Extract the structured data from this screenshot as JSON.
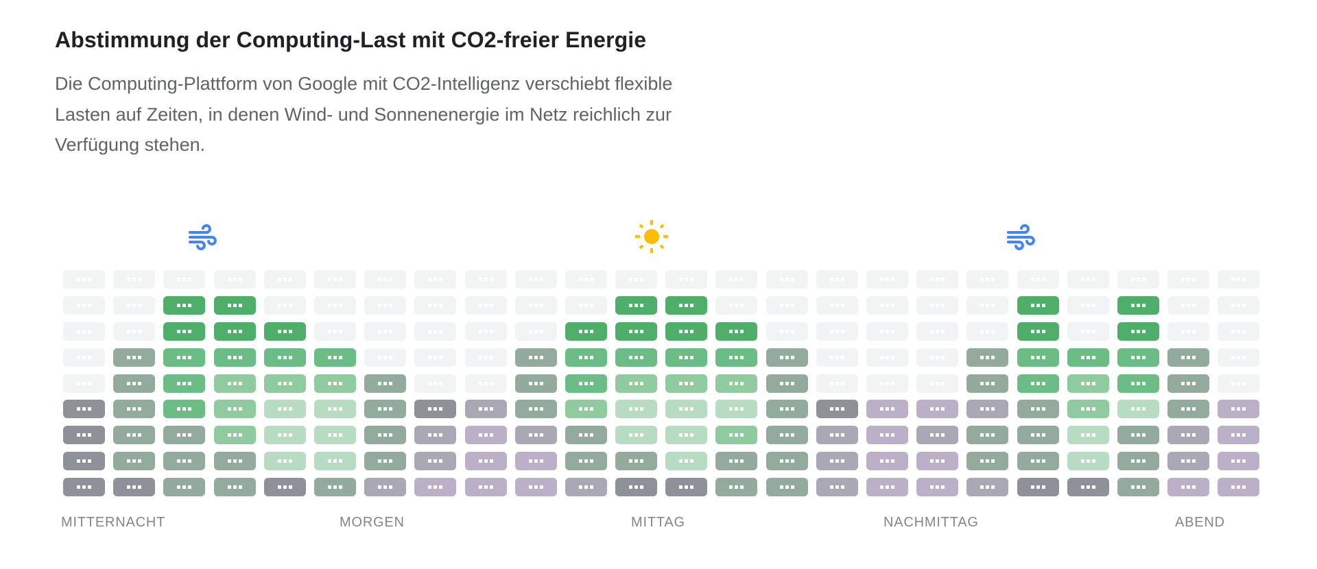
{
  "header": {
    "title": "Abstimmung der Computing-Last mit CO2-freier Energie",
    "description_lines": [
      "Die Computing-Plattform von Google mit CO2-Intelligenz verschiebt flexible",
      "Lasten auf Zeiten, in denen Wind- und Sonnenenergie im Netz reichlich zur",
      "Verfügung stehen."
    ]
  },
  "icons": [
    "wind-icon",
    "sun-icon",
    "wind-icon"
  ],
  "colors": {
    "wind": "#4285f4",
    "sun": "#fbbc04",
    "e": "#f1f3f4",
    "A": "#4fae6a",
    "B": "#6cbd85",
    "C": "#8fcb9f",
    "D": "#b8dcc2",
    "M": "#93ab9c",
    "K": "#8e9197",
    "Q": "#a9a8b4",
    "P": "#bcb0c8"
  },
  "grid": {
    "columns": 24,
    "rows": [
      "eeeeeeeeeeeeeeeeeeeeeeee",
      "eeAAeeeeeeeAAeeeeeeAeAee",
      "eeAAAeeeeeAAAAeeeeeAeAee",
      "eMBBBBeeeMBBBBMeeeMBBBMe",
      "eMBCCCMeeMBCCCMeeeMBCBMe",
      "KMBCDDMKQMCDDDMKPPQMCDMP",
      "KMMCDDMQPQMDDCMQPQMMDMQP",
      "KMMMDDMQPPMMDMMQPPMMDMQP",
      "KKMMKMQPPPQKKMMQPPQKKMPP"
    ]
  },
  "axis": {
    "labels": [
      "MITTERNACHT",
      "MORGEN",
      "MITTAG",
      "NACHMITTAG",
      "ABEND"
    ]
  }
}
